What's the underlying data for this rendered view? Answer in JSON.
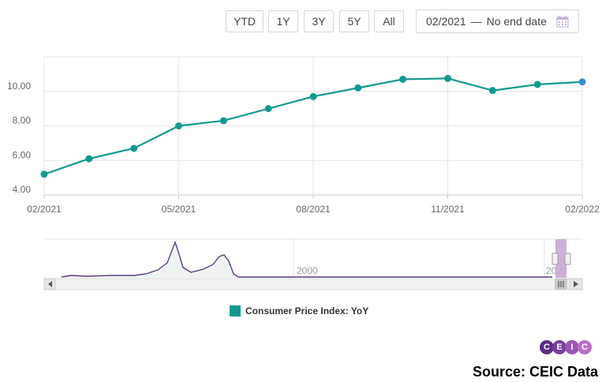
{
  "toolbar": {
    "ranges": [
      "YTD",
      "1Y",
      "3Y",
      "5Y",
      "All"
    ],
    "date_from": "02/2021",
    "date_sep": "—",
    "date_to": "No end date"
  },
  "chart_data": {
    "type": "line",
    "x": [
      "02/2021",
      "03/2021",
      "04/2021",
      "05/2021",
      "06/2021",
      "07/2021",
      "08/2021",
      "09/2021",
      "10/2021",
      "11/2021",
      "12/2021",
      "01/2022",
      "02/2022"
    ],
    "series": [
      {
        "name": "Consumer Price Index: YoY",
        "values": [
          5.2,
          6.1,
          6.7,
          8.0,
          8.3,
          9.0,
          9.7,
          10.2,
          10.7,
          10.75,
          10.05,
          10.4,
          10.55
        ]
      }
    ],
    "ylim": [
      4.0,
      12.0
    ],
    "yticks": [
      "4.00",
      "6.00",
      "8.00",
      "10.00"
    ],
    "xticks": [
      "02/2021",
      "05/2021",
      "08/2021",
      "11/2021",
      "02/2022"
    ],
    "grid": true,
    "legend": "bottom-center",
    "colors": {
      "line": "#12998f",
      "last_point": "#3a8fdc"
    }
  },
  "navigator": {
    "labels": [
      "2000",
      "2020"
    ]
  },
  "legend": {
    "label": "Consumer Price Index: YoY"
  },
  "logo": {
    "letters": [
      "C",
      "E",
      "I",
      "C"
    ]
  },
  "source": "Source: CEIC Data"
}
